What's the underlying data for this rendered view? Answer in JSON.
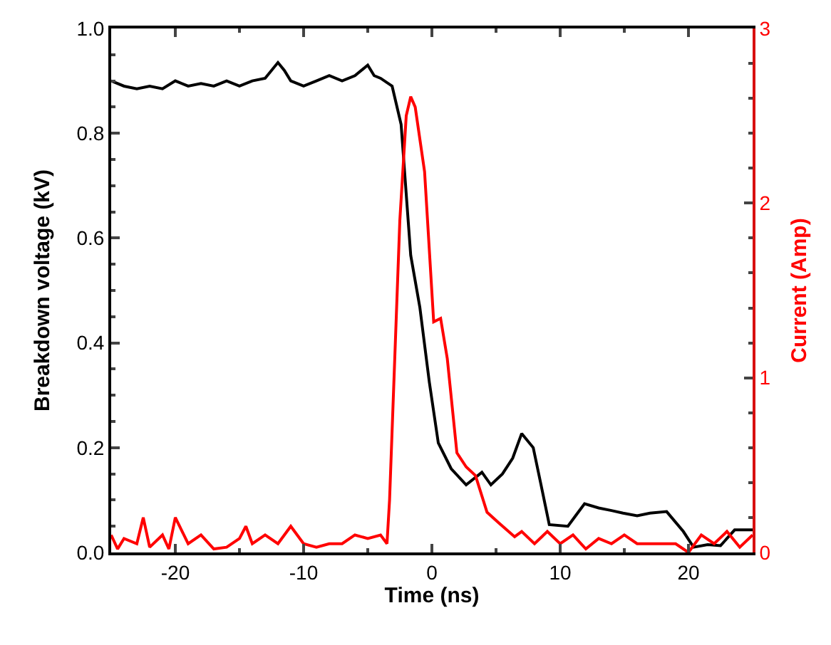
{
  "chart_data": {
    "type": "line",
    "xlabel": "Time (ns)",
    "ylabel": "Breakdown voltage (kV)",
    "y2label": "Current (Amp)",
    "xlim": [
      -25,
      25
    ],
    "xticks": [
      -20,
      -10,
      0,
      10,
      20
    ],
    "ylim": [
      0,
      1.0
    ],
    "yticks": [
      {
        "value": 0,
        "label": "0.0"
      },
      0.2,
      0.4,
      0.6,
      0.8,
      {
        "value": 1.0,
        "label": "1.0"
      }
    ],
    "y2lim": [
      0,
      3
    ],
    "y2ticks": [
      0,
      1,
      2,
      3
    ],
    "marker": "none",
    "line_style": "solid",
    "series": [
      {
        "color": "#000000",
        "x": [
          -25,
          -24,
          -23,
          -22,
          -21,
          -20,
          -19,
          -18,
          -17,
          -16,
          -15,
          -14,
          -13,
          -12,
          -11.5,
          -11,
          -10,
          -9,
          -8,
          -7,
          -6,
          -5,
          -4.5,
          -4,
          -3.1,
          -2.4,
          -1.65,
          -0.94,
          -0.2,
          0.5,
          1.5,
          2.67,
          3.9,
          4.6,
          5.5,
          6.3,
          7.0,
          7.9,
          8.5,
          9.15,
          10.6,
          11.2,
          11.9,
          13,
          14,
          14.9,
          16,
          17,
          18.3,
          19.6,
          20.4,
          21.5,
          22.5,
          23.6,
          25
        ],
        "values": [
          0.9,
          0.89,
          0.885,
          0.89,
          0.885,
          0.9,
          0.89,
          0.895,
          0.89,
          0.9,
          0.89,
          0.9,
          0.905,
          0.935,
          0.92,
          0.9,
          0.89,
          0.9,
          0.91,
          0.9,
          0.91,
          0.93,
          0.91,
          0.905,
          0.89,
          0.817,
          0.567,
          0.468,
          0.325,
          0.209,
          0.16,
          0.129,
          0.153,
          0.129,
          0.15,
          0.18,
          0.227,
          0.2,
          0.13,
          0.053,
          0.05,
          0.07,
          0.093,
          0.085,
          0.08,
          0.075,
          0.07,
          0.075,
          0.078,
          0.04,
          0.01,
          0.015,
          0.013,
          0.043,
          0.043
        ]
      },
      {
        "color": "#ff0000",
        "axis": "y2",
        "x": [
          -25,
          -24.5,
          -24,
          -23,
          -22.5,
          -22,
          -21,
          -20.5,
          -20,
          -19,
          -18,
          -17,
          -16,
          -15,
          -14.5,
          -14,
          -13,
          -12,
          -11,
          -10,
          -9,
          -8,
          -7,
          -6,
          -5,
          -4,
          -3.5,
          -3.3,
          -2.5,
          -2.0,
          -1.65,
          -1.3,
          -0.57,
          0.14,
          0.68,
          1.2,
          1.95,
          2.67,
          3.4,
          4.3,
          5.2,
          6.45,
          7,
          8,
          9,
          10,
          11,
          12,
          13,
          14,
          15,
          16,
          17,
          18,
          19,
          20,
          21,
          22,
          23,
          24,
          25
        ],
        "values": [
          0.1,
          0.02,
          0.08,
          0.05,
          0.2,
          0.03,
          0.1,
          0.02,
          0.2,
          0.05,
          0.1,
          0.02,
          0.03,
          0.08,
          0.15,
          0.05,
          0.1,
          0.05,
          0.15,
          0.05,
          0.03,
          0.05,
          0.05,
          0.1,
          0.08,
          0.1,
          0.05,
          0.3,
          1.9,
          2.5,
          2.61,
          2.55,
          2.18,
          1.32,
          1.34,
          1.11,
          0.57,
          0.49,
          0.44,
          0.23,
          0.17,
          0.09,
          0.12,
          0.05,
          0.12,
          0.05,
          0.1,
          0.02,
          0.08,
          0.05,
          0.1,
          0.05,
          0.05,
          0.05,
          0.05,
          0.0,
          0.1,
          0.05,
          0.12,
          0.03,
          0.1
        ]
      }
    ]
  }
}
